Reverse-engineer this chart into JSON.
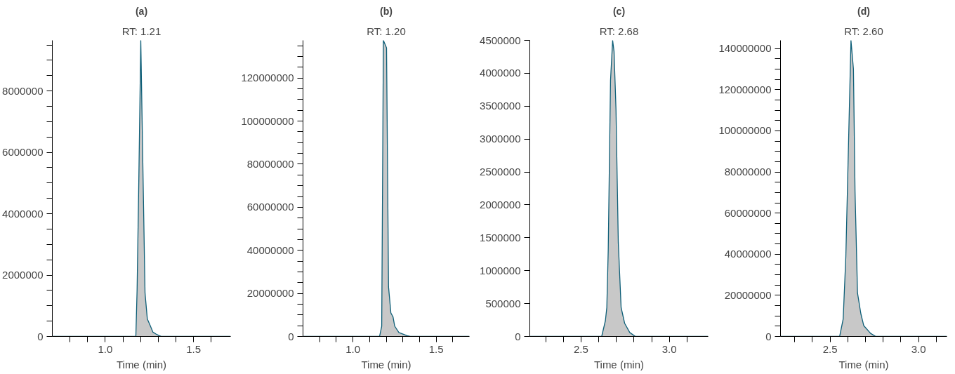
{
  "chart_data": [
    {
      "type": "area",
      "title": "(a)",
      "subtitle": "RT: 1.21",
      "xlabel": "Time (min)",
      "xlim": [
        0.7,
        1.71
      ],
      "ylim": [
        0,
        9650000
      ],
      "xticks": [
        {
          "value": 0.8,
          "label": null
        },
        {
          "value": 0.9,
          "label": null
        },
        {
          "value": 1.0,
          "label": "1.0"
        },
        {
          "value": 1.1,
          "label": null
        },
        {
          "value": 1.2,
          "label": null
        },
        {
          "value": 1.3,
          "label": null
        },
        {
          "value": 1.4,
          "label": null
        },
        {
          "value": 1.5,
          "label": "1.5"
        },
        {
          "value": 1.6,
          "label": null
        }
      ],
      "yticks": [
        0,
        {
          "value": 500000,
          "label": null
        },
        {
          "value": 1000000,
          "label": null
        },
        {
          "value": 1500000,
          "label": null
        },
        2000000,
        {
          "value": 2500000,
          "label": null
        },
        {
          "value": 3000000,
          "label": null
        },
        {
          "value": 3500000,
          "label": null
        },
        4000000,
        {
          "value": 4500000,
          "label": null
        },
        {
          "value": 5000000,
          "label": null
        },
        {
          "value": 5500000,
          "label": null
        },
        6000000,
        {
          "value": 6500000,
          "label": null
        },
        {
          "value": 7000000,
          "label": null
        },
        {
          "value": 7500000,
          "label": null
        },
        8000000,
        {
          "value": 8500000,
          "label": null
        },
        {
          "value": 9000000,
          "label": null
        },
        {
          "value": 9500000,
          "label": null
        }
      ],
      "x": [
        0.7,
        1.173,
        1.18,
        1.19,
        1.201,
        1.214,
        1.225,
        1.238,
        1.254,
        1.27,
        1.287,
        1.303,
        1.32,
        1.71
      ],
      "series": [
        {
          "color": "#c8c8c8",
          "values": [
            0,
            0,
            1500000,
            5150000,
            9650000,
            5150000,
            1420000,
            570000,
            360000,
            140000,
            80000,
            30000,
            0,
            0
          ]
        }
      ]
    },
    {
      "type": "area",
      "title": "(b)",
      "subtitle": "RT: 1.20",
      "xlabel": "Time (min)",
      "xlim": [
        0.7,
        1.7
      ],
      "ylim": [
        0,
        137500000
      ],
      "xticks": [
        {
          "value": 0.8,
          "label": null
        },
        {
          "value": 0.9,
          "label": null
        },
        {
          "value": 1.0,
          "label": "1.0"
        },
        {
          "value": 1.1,
          "label": null
        },
        {
          "value": 1.2,
          "label": null
        },
        {
          "value": 1.3,
          "label": null
        },
        {
          "value": 1.4,
          "label": null
        },
        {
          "value": 1.5,
          "label": "1.5"
        },
        {
          "value": 1.6,
          "label": null
        }
      ],
      "yticks": [
        0,
        {
          "value": 5000000,
          "label": null
        },
        {
          "value": 10000000,
          "label": null
        },
        {
          "value": 15000000,
          "label": null
        },
        20000000,
        {
          "value": 25000000,
          "label": null
        },
        {
          "value": 30000000,
          "label": null
        },
        {
          "value": 35000000,
          "label": null
        },
        40000000,
        {
          "value": 45000000,
          "label": null
        },
        {
          "value": 50000000,
          "label": null
        },
        {
          "value": 55000000,
          "label": null
        },
        60000000,
        {
          "value": 65000000,
          "label": null
        },
        {
          "value": 70000000,
          "label": null
        },
        {
          "value": 75000000,
          "label": null
        },
        80000000,
        {
          "value": 85000000,
          "label": null
        },
        {
          "value": 90000000,
          "label": null
        },
        {
          "value": 95000000,
          "label": null
        },
        100000000,
        {
          "value": 105000000,
          "label": null
        },
        {
          "value": 110000000,
          "label": null
        },
        {
          "value": 115000000,
          "label": null
        },
        120000000,
        {
          "value": 125000000,
          "label": null
        },
        {
          "value": 130000000,
          "label": null
        },
        {
          "value": 135000000,
          "label": null
        }
      ],
      "x": [
        0.7,
        1.16,
        1.173,
        1.183,
        1.202,
        1.214,
        1.228,
        1.241,
        1.251,
        1.276,
        1.325,
        1.344,
        1.7
      ],
      "series": [
        {
          "color": "#c8c8c8",
          "values": [
            0,
            0,
            4800000,
            137500000,
            134000000,
            23000000,
            10900000,
            9100000,
            4800000,
            1800000,
            400000,
            0,
            0
          ]
        }
      ]
    },
    {
      "type": "area",
      "title": "(c)",
      "subtitle": "RT: 2.68",
      "xlabel": "Time (min)",
      "xlim": [
        2.21,
        3.22
      ],
      "ylim": [
        0,
        4500000
      ],
      "xticks": [
        {
          "value": 2.3,
          "label": null
        },
        {
          "value": 2.4,
          "label": null
        },
        {
          "value": 2.5,
          "label": "2.5"
        },
        {
          "value": 2.6,
          "label": null
        },
        {
          "value": 2.7,
          "label": null
        },
        {
          "value": 2.8,
          "label": null
        },
        {
          "value": 2.9,
          "label": null
        },
        {
          "value": 3.0,
          "label": "3.0"
        },
        {
          "value": 3.1,
          "label": null
        }
      ],
      "yticks": [
        0,
        500000,
        1000000,
        1500000,
        2000000,
        2500000,
        3000000,
        3500000,
        4000000,
        4500000
      ],
      "x": [
        2.21,
        2.617,
        2.638,
        2.646,
        2.654,
        2.667,
        2.679,
        2.687,
        2.698,
        2.711,
        2.727,
        2.747,
        2.776,
        2.808,
        3.22
      ],
      "series": [
        {
          "color": "#c8c8c8",
          "values": [
            0,
            0,
            240000,
            440000,
            1310000,
            3890000,
            4500000,
            4330000,
            3450000,
            1430000,
            440000,
            200000,
            60000,
            0,
            0
          ]
        }
      ]
    },
    {
      "type": "area",
      "title": "(d)",
      "subtitle": "RT: 2.60",
      "xlabel": "Time (min)",
      "xlim": [
        2.22,
        3.16
      ],
      "ylim": [
        0,
        144000000
      ],
      "xticks": [
        {
          "value": 2.3,
          "label": null
        },
        {
          "value": 2.4,
          "label": null
        },
        {
          "value": 2.5,
          "label": "2.5"
        },
        {
          "value": 2.6,
          "label": null
        },
        {
          "value": 2.7,
          "label": null
        },
        {
          "value": 2.8,
          "label": null
        },
        {
          "value": 2.9,
          "label": null
        },
        {
          "value": 3.0,
          "label": "3.0"
        },
        {
          "value": 3.1,
          "label": null
        }
      ],
      "yticks": [
        0,
        {
          "value": 5000000,
          "label": null
        },
        {
          "value": 10000000,
          "label": null
        },
        {
          "value": 15000000,
          "label": null
        },
        20000000,
        {
          "value": 25000000,
          "label": null
        },
        {
          "value": 30000000,
          "label": null
        },
        {
          "value": 35000000,
          "label": null
        },
        40000000,
        {
          "value": 45000000,
          "label": null
        },
        {
          "value": 50000000,
          "label": null
        },
        {
          "value": 55000000,
          "label": null
        },
        60000000,
        {
          "value": 65000000,
          "label": null
        },
        {
          "value": 70000000,
          "label": null
        },
        {
          "value": 75000000,
          "label": null
        },
        80000000,
        {
          "value": 85000000,
          "label": null
        },
        {
          "value": 90000000,
          "label": null
        },
        {
          "value": 95000000,
          "label": null
        },
        100000000,
        {
          "value": 105000000,
          "label": null
        },
        {
          "value": 110000000,
          "label": null
        },
        {
          "value": 115000000,
          "label": null
        },
        120000000,
        {
          "value": 125000000,
          "label": null
        },
        {
          "value": 130000000,
          "label": null
        },
        {
          "value": 135000000,
          "label": null
        },
        140000000
      ],
      "x": [
        2.22,
        2.554,
        2.574,
        2.589,
        2.603,
        2.618,
        2.632,
        2.641,
        2.655,
        2.674,
        2.69,
        2.729,
        2.758,
        3.16
      ],
      "series": [
        {
          "color": "#c8c8c8",
          "values": [
            0,
            0,
            8500000,
            38900000,
            89500000,
            144000000,
            130000000,
            70500000,
            21100000,
            11000000,
            5300000,
            1500000,
            0,
            0
          ]
        }
      ]
    }
  ]
}
